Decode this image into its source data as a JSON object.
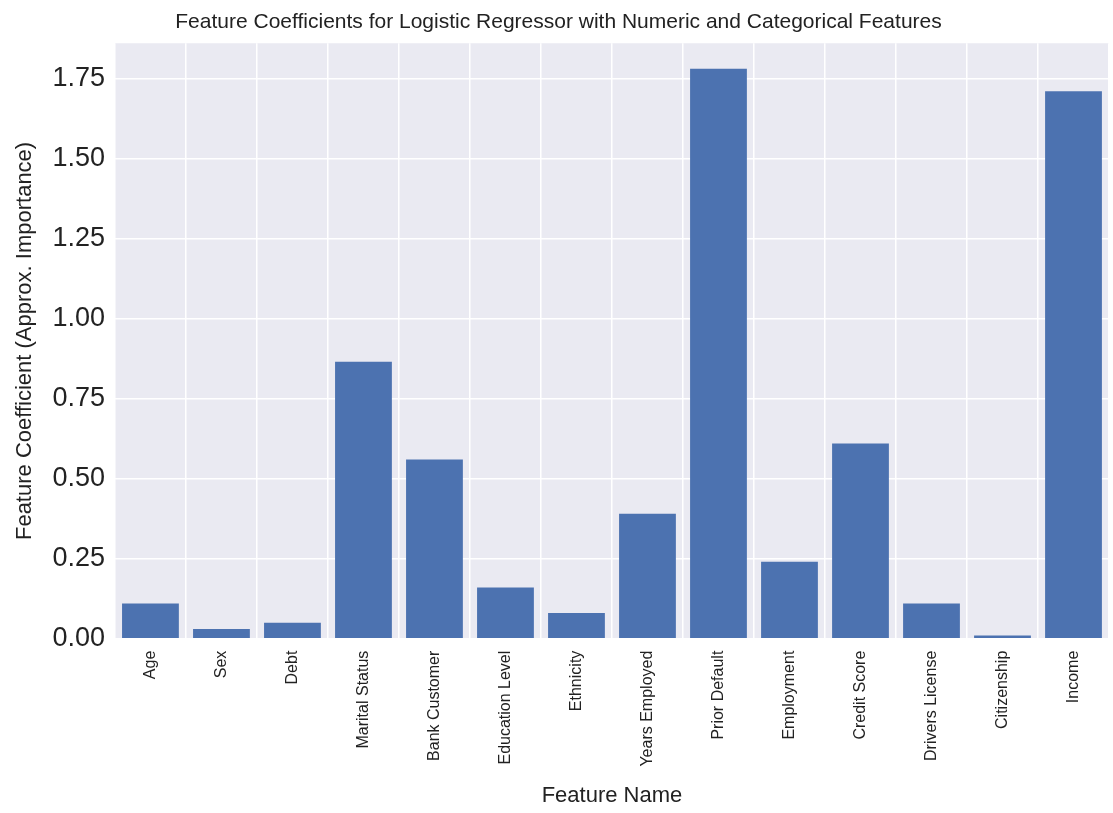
{
  "chart_data": {
    "type": "bar",
    "title": "Feature Coefficients for Logistic Regressor with Numeric and Categorical Features",
    "xlabel": "Feature Name",
    "ylabel": "Feature Coefficient (Approx. Importance)",
    "categories": [
      "Age",
      "Sex",
      "Debt",
      "Marital Status",
      "Bank Customer",
      "Education Level",
      "Ethnicity",
      "Years Employed",
      "Prior Default",
      "Employment",
      "Credit Score",
      "Drivers License",
      "Citizenship",
      "Income"
    ],
    "values": [
      0.11,
      0.03,
      0.05,
      0.865,
      0.56,
      0.16,
      0.08,
      0.39,
      1.78,
      0.24,
      0.61,
      0.11,
      0.01,
      1.71
    ],
    "color": "#4c72b0",
    "ylim": [
      0,
      1.86
    ],
    "yticks": [
      {
        "value": 0,
        "label": "0.00"
      },
      {
        "value": 0.25,
        "label": "0.25"
      },
      {
        "value": 0.5,
        "label": "0.50"
      },
      {
        "value": 0.75,
        "label": "0.75"
      },
      {
        "value": 1,
        "label": "1.00"
      },
      {
        "value": 1.25,
        "label": "1.25"
      },
      {
        "value": 1.5,
        "label": "1.50"
      },
      {
        "value": 1.75,
        "label": "1.75"
      }
    ],
    "grid": true
  }
}
